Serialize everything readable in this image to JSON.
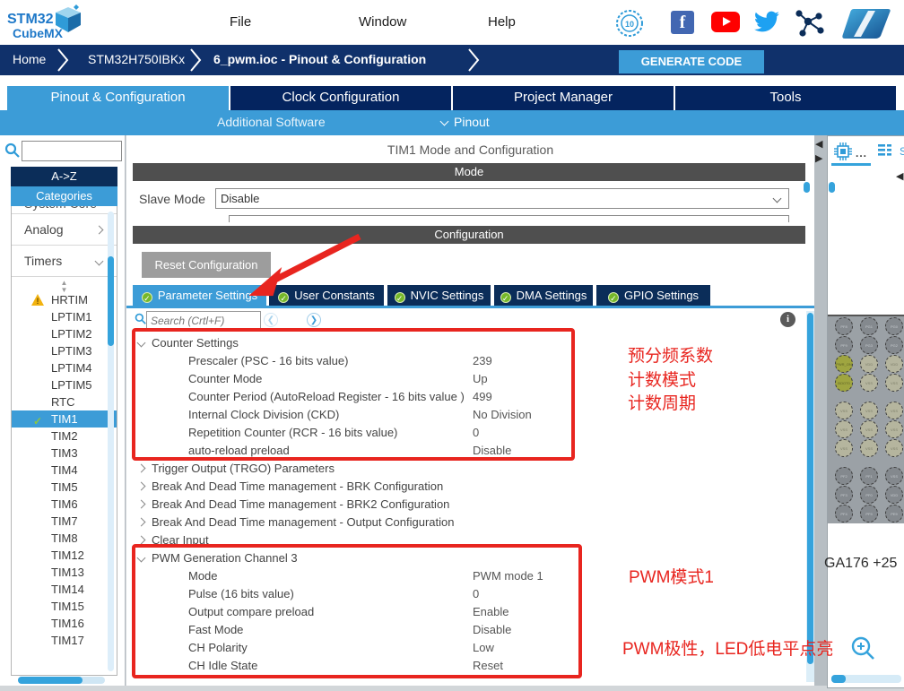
{
  "topbar": {
    "logo_line1": "STM32",
    "logo_line2": "CubeMX",
    "menus": [
      "File",
      "Window",
      "Help"
    ],
    "icons": [
      "badge-10-years-icon",
      "facebook-icon",
      "youtube-icon",
      "twitter-icon",
      "network-icon",
      "st-logo-icon"
    ]
  },
  "breadcrumb": {
    "items": [
      "Home",
      "STM32H750IBKx",
      "6_pwm.ioc - Pinout & Configuration"
    ],
    "generate_button": "GENERATE CODE"
  },
  "main_tabs": [
    {
      "label": "Pinout & Configuration",
      "active": true
    },
    {
      "label": "Clock Configuration",
      "active": false
    },
    {
      "label": "Project Manager",
      "active": false
    },
    {
      "label": "Tools",
      "active": false
    }
  ],
  "sub_bar": {
    "additional_software": "Additional Software",
    "pinout": "Pinout"
  },
  "sidebar": {
    "search_value": "",
    "az_button": "A->Z",
    "categories_button": "Categories",
    "clipped_group": "System Core",
    "groups": [
      {
        "label": "Analog",
        "state": "collapsed"
      },
      {
        "label": "Timers",
        "state": "expanded"
      }
    ],
    "items": [
      {
        "label": "HRTIM",
        "warning": true
      },
      {
        "label": "LPTIM1"
      },
      {
        "label": "LPTIM2"
      },
      {
        "label": "LPTIM3"
      },
      {
        "label": "LPTIM4"
      },
      {
        "label": "LPTIM5"
      },
      {
        "label": "RTC"
      },
      {
        "label": "TIM1",
        "selected": true,
        "checked": true
      },
      {
        "label": "TIM2"
      },
      {
        "label": "TIM3"
      },
      {
        "label": "TIM4"
      },
      {
        "label": "TIM5"
      },
      {
        "label": "TIM6"
      },
      {
        "label": "TIM7"
      },
      {
        "label": "TIM8"
      },
      {
        "label": "TIM12"
      },
      {
        "label": "TIM13"
      },
      {
        "label": "TIM14"
      },
      {
        "label": "TIM15"
      },
      {
        "label": "TIM16"
      },
      {
        "label": "TIM17"
      }
    ]
  },
  "panel": {
    "title": "TIM1 Mode and Configuration",
    "mode_header": "Mode",
    "slave_mode_label": "Slave Mode",
    "slave_mode_value": "Disable",
    "config_header": "Configuration",
    "reset_button": "Reset Configuration",
    "config_tabs": [
      {
        "label": "Parameter Settings",
        "active": true
      },
      {
        "label": "User Constants",
        "active": false
      },
      {
        "label": "NVIC Settings",
        "active": false
      },
      {
        "label": "DMA Settings",
        "active": false
      },
      {
        "label": "GPIO Settings",
        "active": false
      }
    ],
    "search_placeholder": "Search (Crtl+F)",
    "tree": [
      {
        "label": "Counter Settings",
        "state": "expanded",
        "children": [
          {
            "label": "Prescaler (PSC - 16 bits value)",
            "value": "239"
          },
          {
            "label": "Counter Mode",
            "value": "Up"
          },
          {
            "label": "Counter Period (AutoReload Register - 16 bits value )",
            "value": "499"
          },
          {
            "label": "Internal Clock Division (CKD)",
            "value": "No Division"
          },
          {
            "label": "Repetition Counter (RCR - 16 bits value)",
            "value": "0"
          },
          {
            "label": "auto-reload preload",
            "value": "Disable"
          }
        ]
      },
      {
        "label": "Trigger Output (TRGO) Parameters",
        "state": "collapsed",
        "children": []
      },
      {
        "label": "Break And Dead Time management - BRK Configuration",
        "state": "collapsed",
        "children": []
      },
      {
        "label": "Break And Dead Time management - BRK2 Configuration",
        "state": "collapsed",
        "children": []
      },
      {
        "label": "Break And Dead Time management - Output Configuration",
        "state": "collapsed",
        "children": []
      },
      {
        "label": "Clear Input",
        "state": "collapsed",
        "children": []
      },
      {
        "label": "PWM Generation Channel 3",
        "state": "expanded",
        "children": [
          {
            "label": "Mode",
            "value": "PWM mode 1"
          },
          {
            "label": "Pulse (16 bits value)",
            "value": "0"
          },
          {
            "label": "Output compare preload",
            "value": "Enable"
          },
          {
            "label": "Fast Mode",
            "value": "Disable"
          },
          {
            "label": "CH Polarity",
            "value": "Low"
          },
          {
            "label": "CH Idle State",
            "value": "Reset"
          }
        ]
      }
    ]
  },
  "annotations": {
    "prescaler": "预分频系数",
    "count_mode": "计数模式",
    "count_period": "计数周期",
    "pwm_mode": "PWM模式1",
    "pwm_polarity": "PWM极性，LED低电平点亮"
  },
  "right_panel": {
    "tab1_dots": "...",
    "tab2_partial": "S",
    "package_label": "GA176 +25",
    "ball_rows": [
      {
        "style": "gray",
        "labels": [
          "PF8",
          "PG1",
          "PG0"
        ]
      },
      {
        "style": "gray",
        "labels": [
          "PF9",
          "PG3",
          "PG2"
        ]
      },
      {
        "style": "power",
        "labels": [
          "PWR_ON",
          "VDD",
          "VDD"
        ]
      },
      {
        "style": "power",
        "labels": [
          "BOOT0",
          "VSS",
          "VSS"
        ]
      },
      {
        "style": "gap",
        "labels": []
      },
      {
        "style": "olive",
        "labels": [
          "VSS",
          "VSS",
          "VSS"
        ]
      },
      {
        "style": "olive",
        "labels": [
          "VSS",
          "VSS",
          "VSS"
        ]
      },
      {
        "style": "olive",
        "labels": [
          "VSS",
          "VSS",
          "VSS"
        ]
      },
      {
        "style": "gap",
        "labels": []
      },
      {
        "style": "gray",
        "labels": [
          "PF2",
          "PF1",
          "VSS"
        ]
      },
      {
        "style": "gray",
        "labels": [
          "PF3",
          "PF0",
          "VDD"
        ]
      },
      {
        "style": "gray",
        "labels": [
          "PF4",
          "PF9",
          "PE9"
        ]
      }
    ]
  },
  "colors": {
    "accent_blue": "#3C9CD7",
    "navy": "#0B2D59",
    "breadcrumb_navy": "#10316B",
    "header_gray": "#4F4F4F",
    "annotation_red": "#E8251F",
    "warning_yellow": "#F2B310",
    "check_green": "#76B82A",
    "scrollbar_blue": "#35A3DC"
  }
}
